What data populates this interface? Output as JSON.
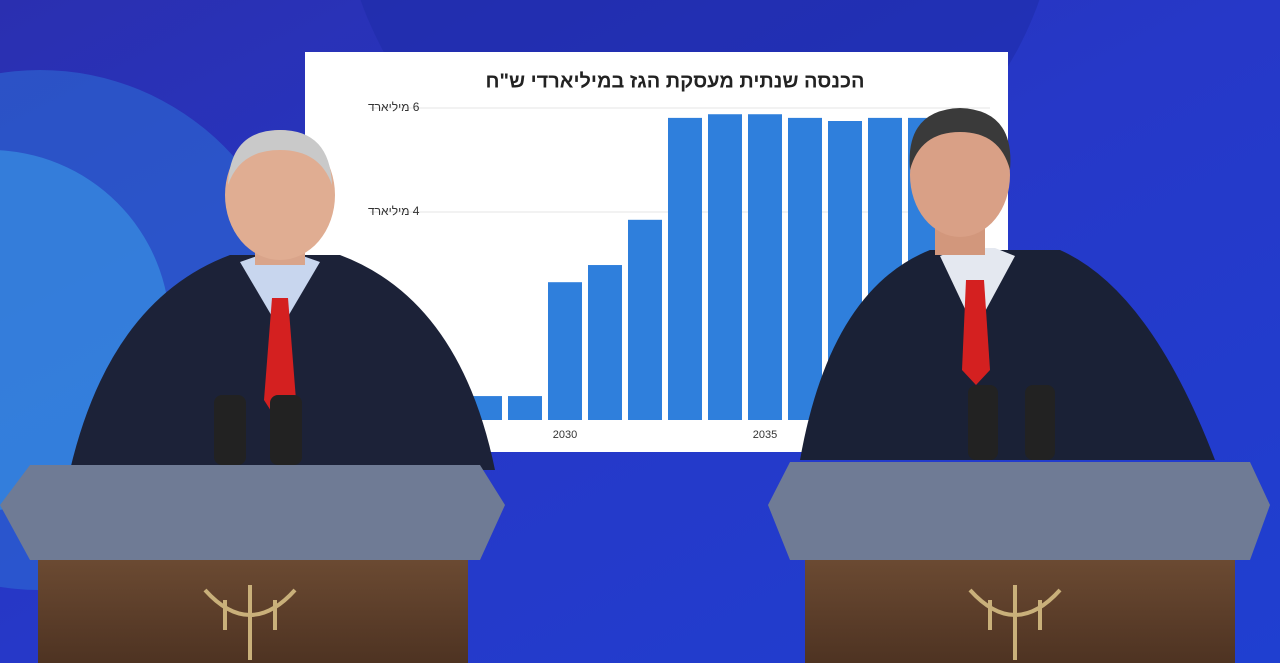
{
  "chart_data": {
    "type": "bar",
    "title": "הכנסה שנתית מעסקת הגז במיליארדי ש\"ח",
    "categories": [
      null,
      null,
      "2030",
      null,
      null,
      null,
      null,
      "2035",
      null,
      null,
      null,
      null
    ],
    "values": [
      0.46,
      0.46,
      2.65,
      2.98,
      3.85,
      5.81,
      5.88,
      5.88,
      5.81,
      5.75,
      5.81,
      5.81
    ],
    "color": "#2f7fdc",
    "ylim": [
      0,
      6
    ],
    "yticks": [
      {
        "value": 4,
        "label": "4 מיליארד"
      },
      {
        "value": 6,
        "label": "6 מיליארד"
      }
    ],
    "grid": true
  }
}
